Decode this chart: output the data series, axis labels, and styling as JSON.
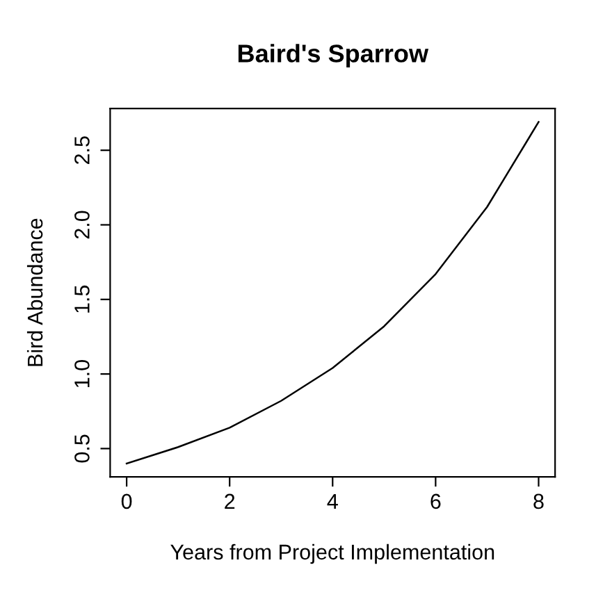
{
  "chart_data": {
    "type": "line",
    "title": "Baird's Sparrow",
    "xlabel": "Years from Project Implementation",
    "ylabel": "Bird Abundance",
    "x": [
      0,
      1,
      2,
      3,
      4,
      5,
      6,
      7,
      8
    ],
    "series": [
      {
        "color": "#000000",
        "values": [
          0.4,
          0.51,
          0.64,
          0.82,
          1.04,
          1.32,
          1.67,
          2.12,
          2.69
        ]
      }
    ],
    "xlim": [
      -0.32,
      8.32
    ],
    "ylim": [
      0.31,
      2.78
    ],
    "xticks": [
      0,
      2,
      4,
      6,
      8
    ],
    "yticks": [
      {
        "value": 0.5,
        "label": "0.5"
      },
      {
        "value": 1.0,
        "label": "1.0"
      },
      {
        "value": 1.5,
        "label": "1.5"
      },
      {
        "value": 2.0,
        "label": "2.0"
      },
      {
        "value": 2.5,
        "label": "2.5"
      }
    ],
    "grid": false,
    "legend": false,
    "marker": "none",
    "line_style": "solid"
  }
}
